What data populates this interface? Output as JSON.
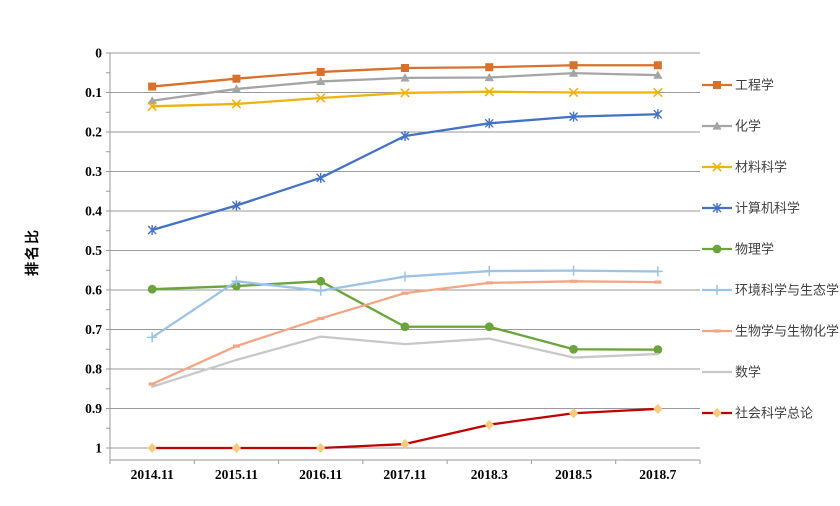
{
  "chart_data": {
    "type": "line",
    "title": "",
    "ylabel": "排名比",
    "xlabel": "",
    "grid": true,
    "inverted_y_axis": true,
    "ylim": [
      0,
      1.03
    ],
    "legend_position": "right",
    "axis_color": "#9a9a9a",
    "gridline_color": "#9a9a9a",
    "tick_label_color": "#000000",
    "legend_text_color": "#3f3f3f",
    "categories": [
      "2014.11",
      "2015.11",
      "2016.11",
      "2017.11",
      "2018.3",
      "2018.5",
      "2018.7"
    ],
    "y_ticks": [
      "0",
      "0.1",
      "0.2",
      "0.3",
      "0.4",
      "0.5",
      "0.6",
      "0.7",
      "0.8",
      "0.9",
      "1"
    ],
    "series": [
      {
        "name": "工程学",
        "color": "#D9712C",
        "marker": "square",
        "values": [
          0.085,
          0.065,
          0.048,
          0.038,
          0.036,
          0.031,
          0.031
        ]
      },
      {
        "name": "化学",
        "color": "#A5A5A5",
        "marker": "triangle",
        "values": [
          0.121,
          0.091,
          0.072,
          0.063,
          0.062,
          0.051,
          0.056
        ]
      },
      {
        "name": "材料科学",
        "color": "#EFB310",
        "marker": "x",
        "values": [
          0.135,
          0.129,
          0.114,
          0.101,
          0.098,
          0.1,
          0.1
        ]
      },
      {
        "name": "计算机科学",
        "color": "#4472C4",
        "marker": "asterisk",
        "values": [
          0.448,
          0.386,
          0.316,
          0.21,
          0.178,
          0.161,
          0.155
        ]
      },
      {
        "name": "物理学",
        "color": "#6BA43B",
        "marker": "circle",
        "values": [
          0.598,
          0.59,
          0.578,
          0.693,
          0.693,
          0.75,
          0.751
        ]
      },
      {
        "name": "环境科学与生态学",
        "color": "#9DC3E6",
        "marker": "plus",
        "values": [
          0.72,
          0.578,
          0.602,
          0.566,
          0.552,
          0.551,
          0.553
        ]
      },
      {
        "name": "生物学与生物化学",
        "color": "#F4A583",
        "marker": "dash",
        "values": [
          0.838,
          0.742,
          0.672,
          0.608,
          0.582,
          0.578,
          0.58
        ]
      },
      {
        "name": "数学",
        "color": "#C8C8C8",
        "marker": "none",
        "values": [
          0.845,
          0.777,
          0.718,
          0.737,
          0.723,
          0.771,
          0.762
        ]
      },
      {
        "name": "社会科学总论",
        "color": "#C00000",
        "marker": "diamond",
        "marker_color": "#F8CB7C",
        "values": [
          1.0,
          1.0,
          1.0,
          0.99,
          0.941,
          0.912,
          0.901
        ]
      }
    ]
  }
}
